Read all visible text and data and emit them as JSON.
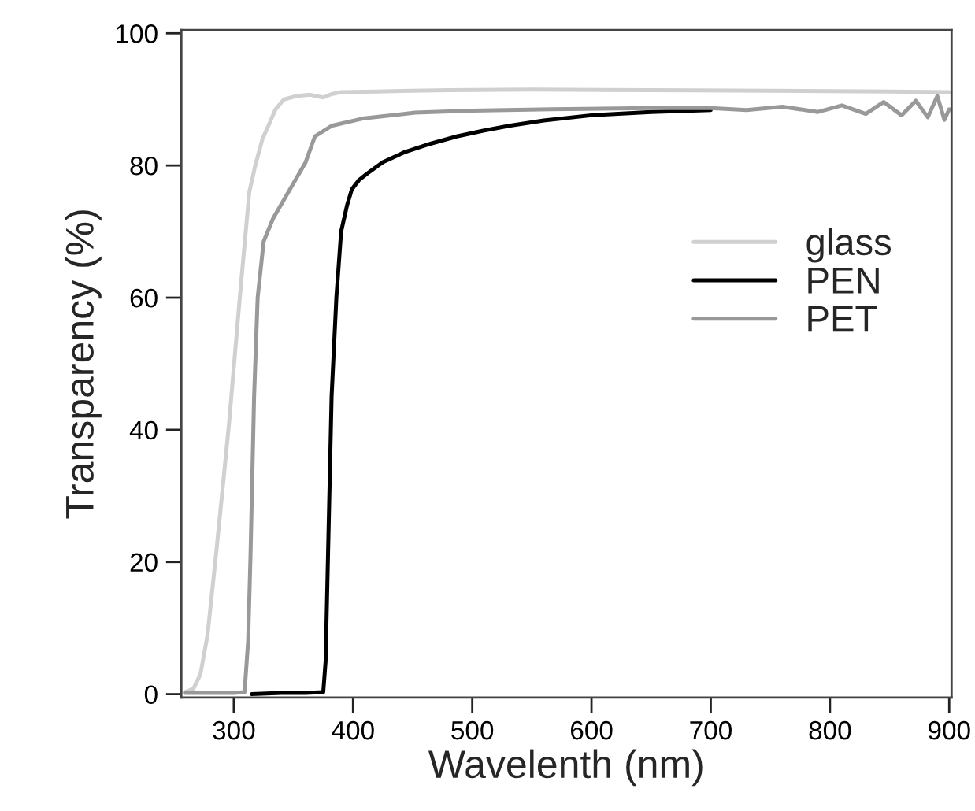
{
  "chart_data": {
    "type": "line",
    "xlabel": "Wavelenth (nm)",
    "ylabel": "Transparency (%)",
    "xlim": [
      256,
      902
    ],
    "ylim": [
      -0.5,
      100.5
    ],
    "xticks": [
      300,
      400,
      500,
      600,
      700,
      800,
      900
    ],
    "yticks": [
      0,
      20,
      40,
      60,
      80,
      100
    ],
    "grid": false,
    "legend": "right",
    "line_style": "solid",
    "marker": "none",
    "series": [
      {
        "name": "glass",
        "color": "#d0d0d0",
        "x": [
          259,
          266,
          272,
          278,
          285,
          290,
          296,
          305,
          313,
          318,
          324,
          329,
          335,
          342,
          352,
          364,
          375,
          382,
          390,
          420,
          480,
          550,
          650,
          750,
          850,
          900
        ],
        "values": [
          0.3,
          0.8,
          3,
          9,
          21,
          30,
          41,
          60,
          76,
          80,
          84,
          86,
          88.5,
          90,
          90.5,
          90.7,
          90.3,
          90.8,
          91.1,
          91.2,
          91.4,
          91.5,
          91.4,
          91.3,
          91.2,
          91.1
        ]
      },
      {
        "name": "PEN",
        "color": "#000000",
        "x": [
          315,
          340,
          360,
          375,
          377,
          379,
          382,
          386,
          390,
          395,
          399,
          405,
          412,
          425,
          443,
          465,
          487,
          510,
          531,
          560,
          600,
          650,
          700
        ],
        "values": [
          0,
          0.2,
          0.2,
          0.3,
          5,
          21,
          45,
          60,
          70,
          74,
          76.4,
          77.8,
          78.8,
          80.5,
          82,
          83.3,
          84.4,
          85.3,
          86,
          86.8,
          87.6,
          88.1,
          88.4
        ]
      },
      {
        "name": "PET",
        "color": "#999999",
        "x": [
          259,
          280,
          300,
          309,
          312,
          314,
          317,
          320,
          325,
          333,
          342,
          351,
          360,
          368,
          382,
          408,
          452,
          500,
          566,
          650,
          700,
          730,
          760,
          790,
          810,
          830,
          845,
          860,
          872,
          882,
          890,
          896,
          900
        ],
        "values": [
          0.2,
          0.2,
          0.2,
          0.3,
          8,
          21,
          45,
          60,
          68.5,
          72,
          74.8,
          77.6,
          80.4,
          84.4,
          86,
          87.1,
          88,
          88.3,
          88.5,
          88.7,
          88.7,
          88.4,
          88.9,
          88.1,
          89.1,
          87.8,
          89.6,
          87.6,
          89.8,
          87.3,
          90.5,
          86.9,
          88.5
        ]
      }
    ]
  }
}
